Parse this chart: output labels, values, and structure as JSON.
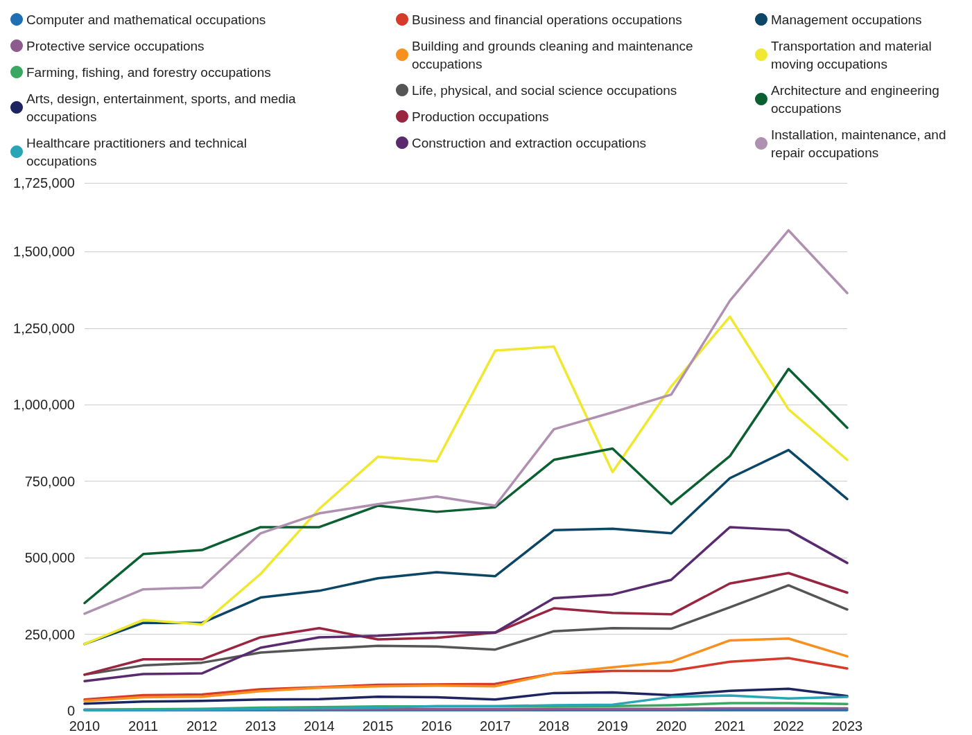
{
  "chart_data": {
    "type": "line",
    "x": [
      2010,
      2011,
      2012,
      2013,
      2014,
      2015,
      2016,
      2017,
      2018,
      2019,
      2020,
      2021,
      2022,
      2023
    ],
    "xlim": [
      2010,
      2023
    ],
    "xticks": [
      2010,
      2011,
      2012,
      2013,
      2014,
      2015,
      2016,
      2017,
      2018,
      2019,
      2020,
      2021,
      2022,
      2023
    ],
    "ylim": [
      0,
      1725000
    ],
    "yticks": [
      0,
      {
        "value": 250000,
        "label": "250,000"
      },
      {
        "value": 500000,
        "label": "500,000"
      },
      {
        "value": 750000,
        "label": "750,000"
      },
      {
        "value": 1000000,
        "label": "1,000,000"
      },
      {
        "value": 1250000,
        "label": "1,250,000"
      },
      {
        "value": 1500000,
        "label": "1,500,000"
      },
      {
        "value": 1725000,
        "label": "1,725,000"
      }
    ],
    "grid": "y",
    "legend": "top",
    "marker": "none",
    "line_style": "solid",
    "series": [
      {
        "name": "Computer and mathematical occupations",
        "color": "#1f6fb4",
        "values": [
          2000,
          2000,
          2000,
          2000,
          2000,
          2000,
          2000,
          2000,
          2000,
          2000,
          2000,
          2000,
          2000,
          2000
        ]
      },
      {
        "name": "Protective service occupations",
        "color": "#8e5b8e",
        "values": [
          4000,
          4000,
          4000,
          5000,
          5000,
          5000,
          5000,
          5000,
          6000,
          6000,
          6000,
          8000,
          8000,
          8000
        ]
      },
      {
        "name": "Farming, fishing, and forestry occupations",
        "color": "#3aa860",
        "values": [
          3000,
          5000,
          6000,
          10000,
          12000,
          14000,
          14000,
          14000,
          14000,
          15000,
          18000,
          25000,
          25000,
          22000
        ]
      },
      {
        "name": "Arts, design, entertainment, sports, and media occupations",
        "color": "#1e2460",
        "values": [
          23000,
          30000,
          32000,
          37000,
          38000,
          46000,
          44000,
          37000,
          58000,
          60000,
          51000,
          65000,
          72000,
          48000
        ]
      },
      {
        "name": "Healthcare practitioners and technical occupations",
        "color": "#2aa5b5",
        "values": [
          2000,
          3000,
          4000,
          6000,
          8000,
          10000,
          15000,
          15000,
          18000,
          20000,
          45000,
          50000,
          40000,
          45000
        ]
      },
      {
        "name": "Business and financial operations occupations",
        "color": "#d63a2a",
        "values": [
          37000,
          51000,
          53000,
          70000,
          77000,
          85000,
          86000,
          88000,
          122000,
          130000,
          130000,
          160000,
          172000,
          138000
        ]
      },
      {
        "name": "Building and grounds cleaning and maintenance occupations",
        "color": "#f7901e",
        "values": [
          32000,
          44000,
          46000,
          64000,
          75000,
          80000,
          82000,
          80000,
          122000,
          142000,
          160000,
          230000,
          236000,
          178000
        ]
      },
      {
        "name": "Life, physical, and social science occupations",
        "color": "#555555",
        "values": [
          118000,
          148000,
          157000,
          190000,
          202000,
          212000,
          210000,
          200000,
          260000,
          270000,
          268000,
          338000,
          410000,
          331000
        ]
      },
      {
        "name": "Production occupations",
        "color": "#9a2540",
        "values": [
          118000,
          168000,
          168000,
          240000,
          270000,
          233000,
          238000,
          255000,
          335000,
          320000,
          315000,
          416000,
          450000,
          386000
        ]
      },
      {
        "name": "Construction and extraction occupations",
        "color": "#5a2a6e",
        "values": [
          97000,
          120000,
          122000,
          206000,
          240000,
          245000,
          256000,
          256000,
          368000,
          380000,
          428000,
          600000,
          590000,
          483000
        ]
      },
      {
        "name": "Management occupations",
        "color": "#0b4666",
        "values": [
          218000,
          287000,
          287000,
          370000,
          392000,
          433000,
          453000,
          440000,
          590000,
          595000,
          580000,
          760000,
          852000,
          692000
        ]
      },
      {
        "name": "Transportation and material moving occupations",
        "color": "#f0e830",
        "values": [
          218000,
          297000,
          282000,
          447000,
          660000,
          830000,
          815000,
          1177000,
          1190000,
          780000,
          1060000,
          1288000,
          985000,
          820000
        ]
      },
      {
        "name": "Architecture and engineering occupations",
        "color": "#0b6032",
        "values": [
          352000,
          512000,
          525000,
          600000,
          600000,
          670000,
          650000,
          665000,
          820000,
          857000,
          675000,
          832000,
          1117000,
          925000
        ]
      },
      {
        "name": "Installation, maintenance, and repair occupations",
        "color": "#b090b0",
        "values": [
          317000,
          397000,
          403000,
          580000,
          645000,
          675000,
          700000,
          670000,
          920000,
          975000,
          1033000,
          1340000,
          1570000,
          1365000
        ]
      }
    ]
  }
}
